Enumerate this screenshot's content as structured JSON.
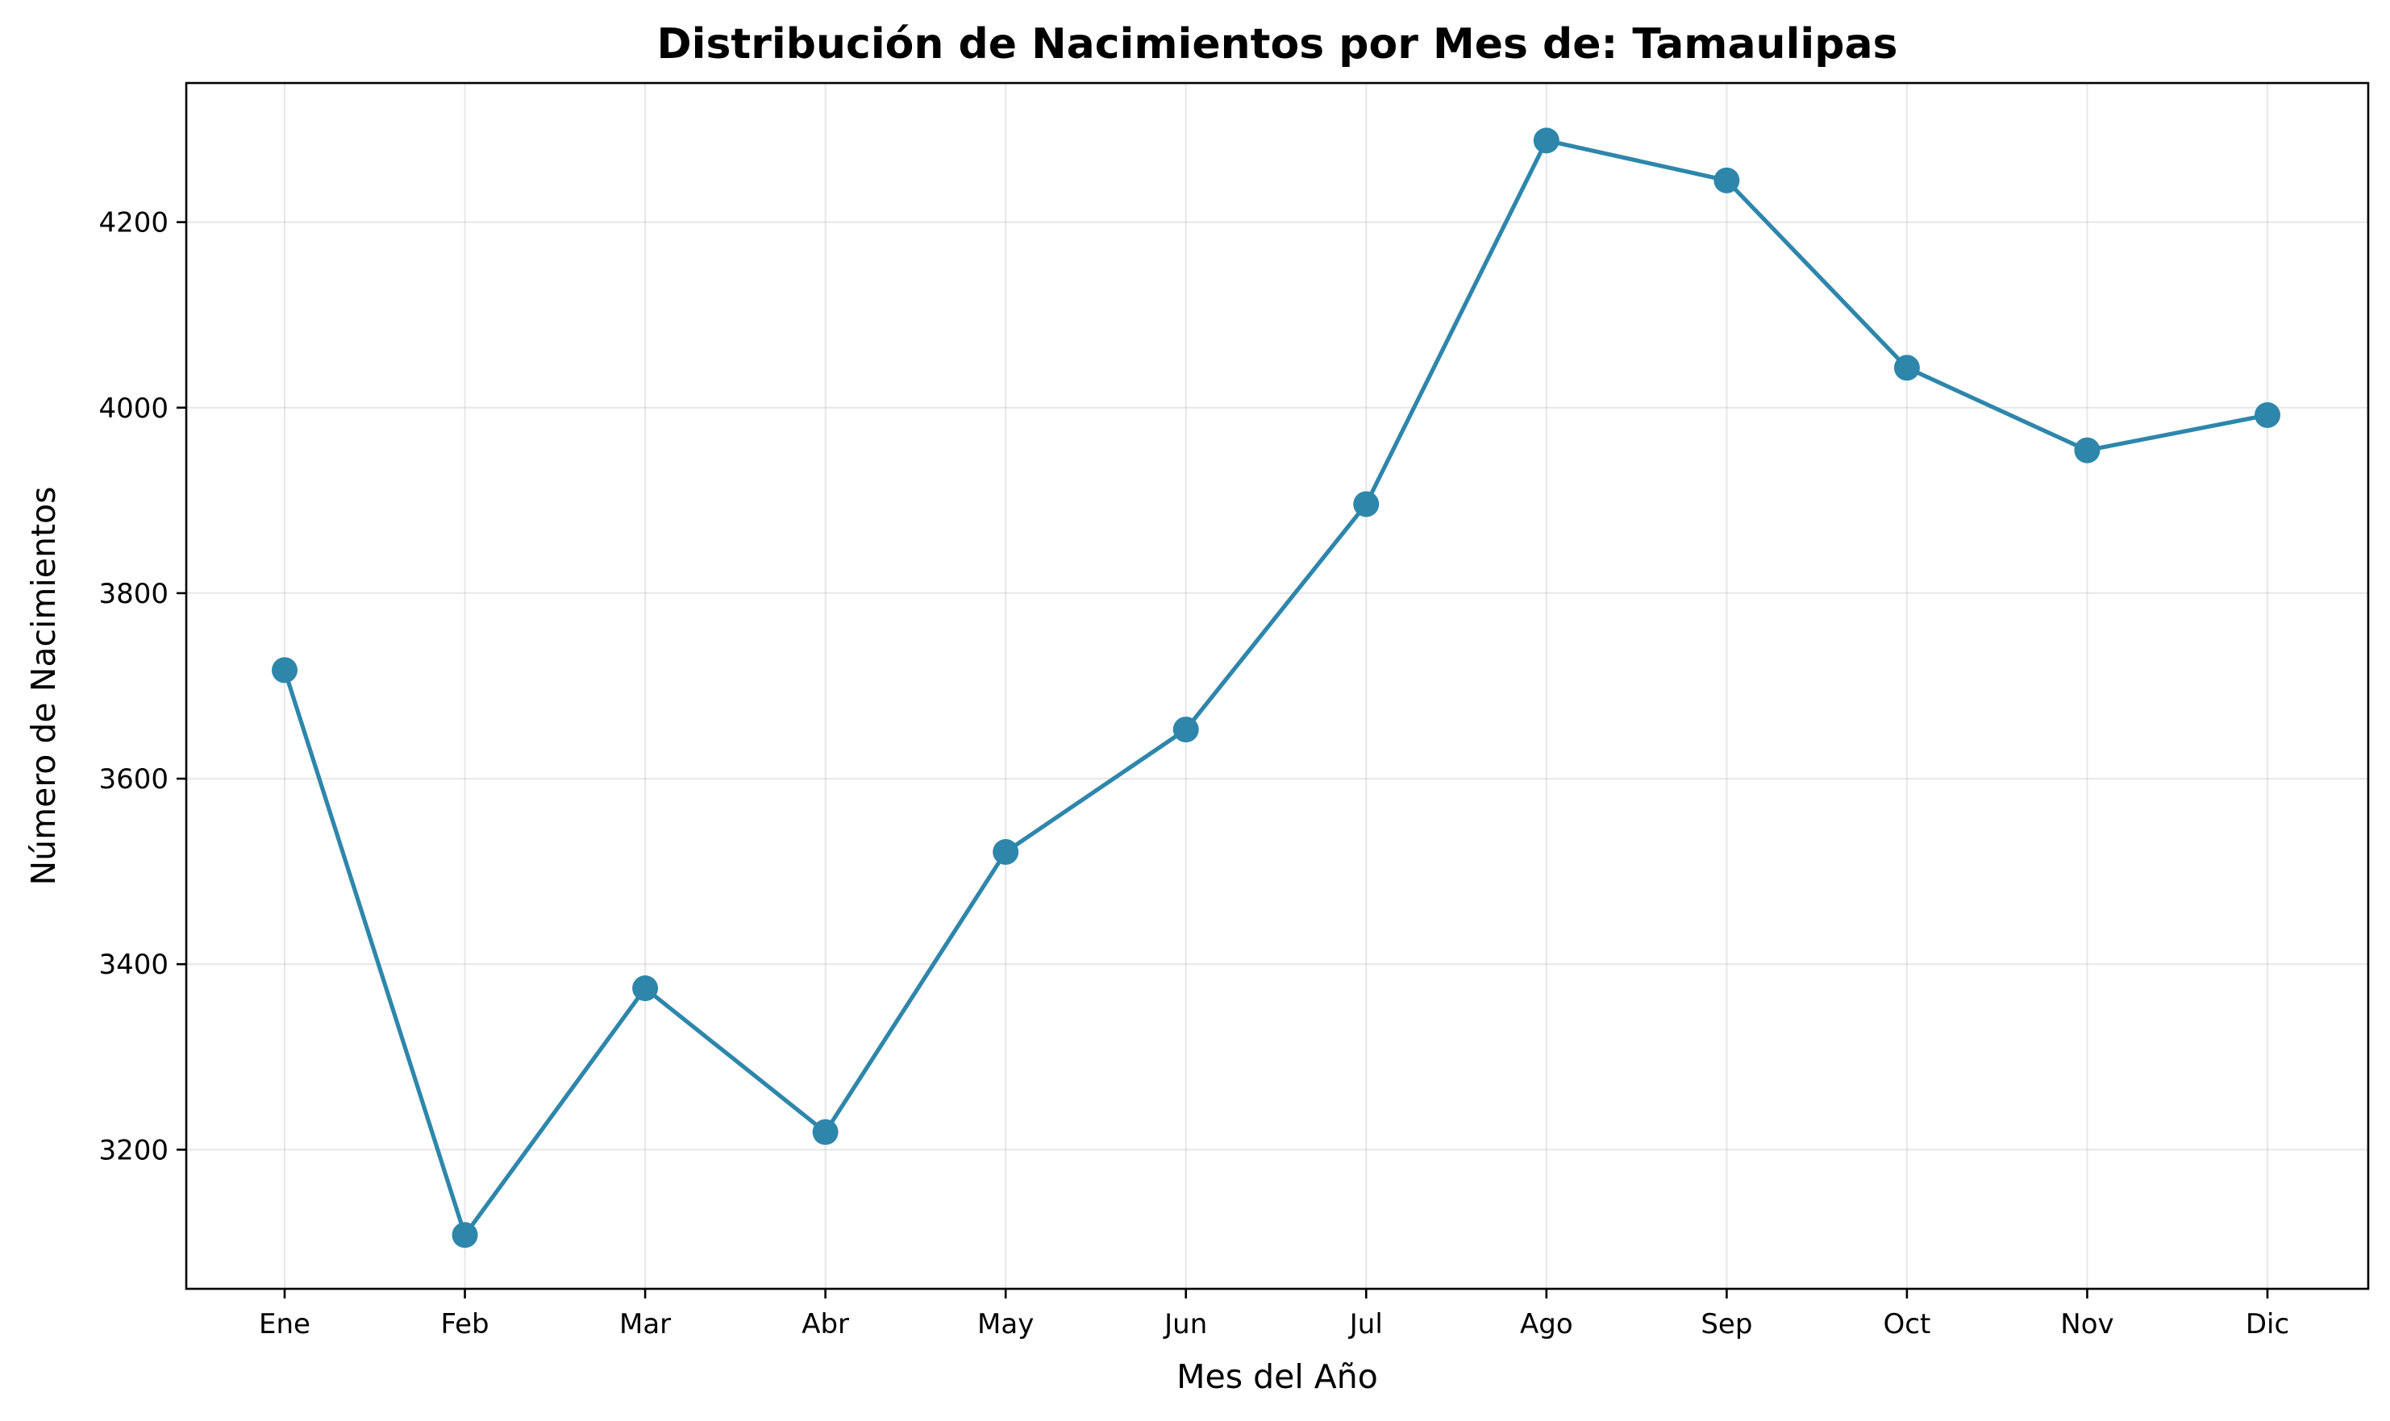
{
  "chart_data": {
    "type": "line",
    "title": "Distribución de Nacimientos por Mes de: Tamaulipas",
    "xlabel": "Mes del Año",
    "ylabel": "Número de Nacimientos",
    "categories": [
      "Ene",
      "Feb",
      "Mar",
      "Abr",
      "May",
      "Jun",
      "Jul",
      "Ago",
      "Sep",
      "Oct",
      "Nov",
      "Dic"
    ],
    "series": [
      {
        "values": [
          3717,
          3108,
          3374,
          3219,
          3521,
          3653,
          3896,
          4288,
          4245,
          4043,
          3954,
          3992
        ]
      }
    ],
    "ylim": [
      3050,
      4350
    ],
    "yticks": [
      3200,
      3400,
      3600,
      3800,
      4000,
      4200
    ],
    "grid": true,
    "line_color": "#2e86ab"
  }
}
